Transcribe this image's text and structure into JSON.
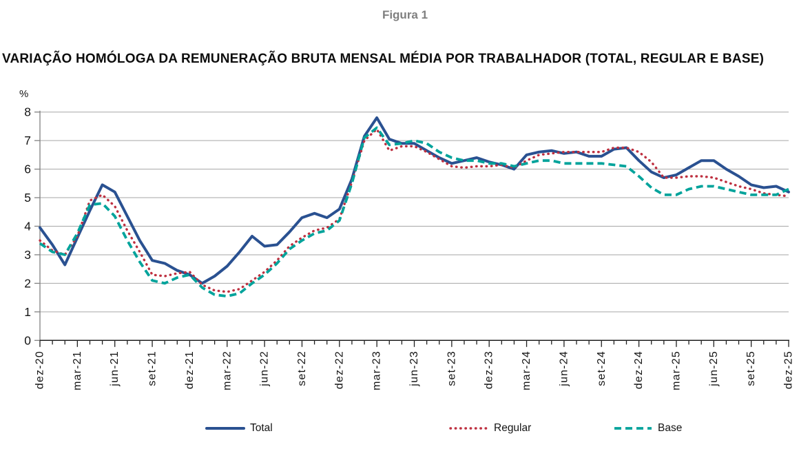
{
  "figure_label": "Figura 1",
  "title": "VARIAÇÃO HOMÓLOGA DA REMUNERAÇÃO BRUTA MENSAL MÉDIA POR TRABALHADOR (TOTAL, REGULAR E BASE)",
  "chart_data": {
    "type": "line",
    "unit_label": "%",
    "ylim": [
      0,
      8
    ],
    "y_ticks": [
      0,
      1,
      2,
      3,
      4,
      5,
      6,
      7,
      8
    ],
    "grid": "horizontal",
    "grid_color": "#a6a6a6",
    "y_axis_color": "#808080",
    "x_axis_color": "#1f1f1f",
    "tick_every": 3,
    "x_tick_labels": [
      "dez-20",
      "mar-21",
      "jun-21",
      "set-21",
      "dez-21",
      "mar-22",
      "jun-22",
      "set-22",
      "dez-22",
      "mar-23",
      "jun-23",
      "set-23",
      "dez-23",
      "mar-24",
      "jun-24",
      "set-24",
      "dez-24",
      "mar-25",
      "jun-25",
      "set-25",
      "dez-25"
    ],
    "categories": [
      "dez-20",
      "jan-21",
      "fev-21",
      "mar-21",
      "abr-21",
      "mai-21",
      "jun-21",
      "jul-21",
      "ago-21",
      "set-21",
      "out-21",
      "nov-21",
      "dez-21",
      "jan-22",
      "fev-22",
      "mar-22",
      "abr-22",
      "mai-22",
      "jun-22",
      "jul-22",
      "ago-22",
      "set-22",
      "out-22",
      "nov-22",
      "dez-22",
      "jan-23",
      "fev-23",
      "mar-23",
      "abr-23",
      "mai-23",
      "jun-23",
      "jul-23",
      "ago-23",
      "set-23",
      "out-23",
      "nov-23",
      "dez-23",
      "jan-24",
      "fev-24",
      "mar-24",
      "abr-24",
      "mai-24",
      "jun-24",
      "jul-24",
      "ago-24",
      "set-24",
      "out-24",
      "nov-24",
      "dez-24",
      "jan-25",
      "fev-25",
      "mar-25",
      "abr-25",
      "mai-25",
      "jun-25",
      "jul-25",
      "ago-25",
      "set-25",
      "out-25",
      "nov-25",
      "dez-25"
    ],
    "legend_position": "bottom",
    "series": [
      {
        "name": "Total",
        "style": "solid",
        "color": "#2a5191",
        "width": 4,
        "values": [
          3.95,
          3.35,
          2.65,
          3.6,
          4.55,
          5.45,
          5.2,
          4.35,
          3.5,
          2.8,
          2.7,
          2.45,
          2.3,
          2.0,
          2.25,
          2.6,
          3.1,
          3.65,
          3.3,
          3.35,
          3.8,
          4.3,
          4.45,
          4.3,
          4.6,
          5.65,
          7.15,
          7.8,
          7.05,
          6.9,
          6.9,
          6.65,
          6.4,
          6.2,
          6.3,
          6.4,
          6.25,
          6.15,
          6.0,
          6.5,
          6.6,
          6.65,
          6.55,
          6.6,
          6.45,
          6.45,
          6.7,
          6.75,
          6.3,
          5.9,
          5.7,
          5.8,
          6.05,
          6.3,
          6.3,
          6.0,
          5.75,
          5.45,
          5.35,
          5.4,
          5.2
        ]
      },
      {
        "name": "Regular",
        "style": "dotted",
        "color": "#be3040",
        "width": 3.4,
        "values": [
          3.5,
          3.15,
          3.0,
          3.65,
          4.9,
          5.1,
          4.7,
          3.85,
          3.1,
          2.3,
          2.25,
          2.35,
          2.4,
          1.95,
          1.75,
          1.7,
          1.8,
          2.1,
          2.4,
          2.8,
          3.3,
          3.6,
          3.85,
          3.95,
          4.25,
          5.55,
          7.0,
          7.4,
          6.65,
          6.8,
          6.8,
          6.6,
          6.35,
          6.1,
          6.05,
          6.1,
          6.1,
          6.15,
          6.05,
          6.3,
          6.5,
          6.55,
          6.6,
          6.6,
          6.6,
          6.6,
          6.75,
          6.75,
          6.6,
          6.25,
          5.7,
          5.7,
          5.75,
          5.75,
          5.7,
          5.55,
          5.4,
          5.3,
          5.15,
          5.1,
          5.05
        ]
      },
      {
        "name": "Base",
        "style": "dashed",
        "color": "#00a39b",
        "width": 3.8,
        "values": [
          3.4,
          3.1,
          3.0,
          3.75,
          4.75,
          4.8,
          4.35,
          3.5,
          2.75,
          2.1,
          2.0,
          2.2,
          2.3,
          1.85,
          1.6,
          1.55,
          1.65,
          2.0,
          2.3,
          2.7,
          3.2,
          3.5,
          3.75,
          3.85,
          4.2,
          5.5,
          7.1,
          7.45,
          6.85,
          6.9,
          7.0,
          6.9,
          6.6,
          6.4,
          6.3,
          6.3,
          6.2,
          6.2,
          6.1,
          6.2,
          6.3,
          6.3,
          6.2,
          6.2,
          6.2,
          6.2,
          6.15,
          6.1,
          5.75,
          5.35,
          5.1,
          5.1,
          5.3,
          5.4,
          5.4,
          5.3,
          5.2,
          5.1,
          5.1,
          5.1,
          5.3
        ]
      }
    ]
  }
}
